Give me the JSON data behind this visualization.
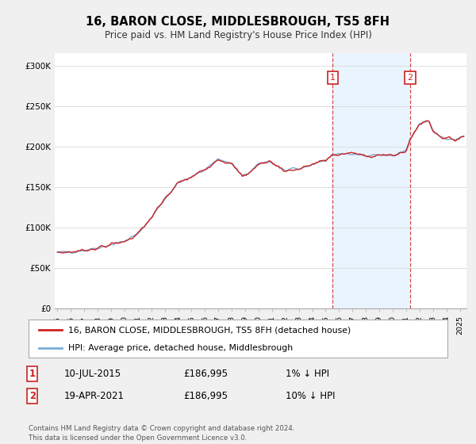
{
  "title": "16, BARON CLOSE, MIDDLESBROUGH, TS5 8FH",
  "subtitle": "Price paid vs. HM Land Registry's House Price Index (HPI)",
  "ylabel_ticks": [
    "£0",
    "£50K",
    "£100K",
    "£150K",
    "£200K",
    "£250K",
    "£300K"
  ],
  "ytick_values": [
    0,
    50000,
    100000,
    150000,
    200000,
    250000,
    300000
  ],
  "ylim": [
    0,
    315000
  ],
  "xlim_start": 1994.8,
  "xlim_end": 2025.5,
  "hpi_color": "#7aadd4",
  "price_color": "#cc2222",
  "marker1_x": 2015.53,
  "marker2_x": 2021.3,
  "marker1_price": 186995,
  "marker2_price": 186995,
  "legend_label1": "16, BARON CLOSE, MIDDLESBROUGH, TS5 8FH (detached house)",
  "legend_label2": "HPI: Average price, detached house, Middlesbrough",
  "table_row1": [
    "1",
    "10-JUL-2015",
    "£186,995",
    "1% ↓ HPI"
  ],
  "table_row2": [
    "2",
    "19-APR-2021",
    "£186,995",
    "10% ↓ HPI"
  ],
  "footer": "Contains HM Land Registry data © Crown copyright and database right 2024.\nThis data is licensed under the Open Government Licence v3.0.",
  "background_color": "#f0f0f0",
  "plot_bg_color": "#ffffff",
  "span_color": "#ddeeff",
  "vline_color": "#cc2222",
  "grid_color": "#dddddd",
  "legend_border_color": "#aaaaaa",
  "table_border_color": "#cc2222"
}
